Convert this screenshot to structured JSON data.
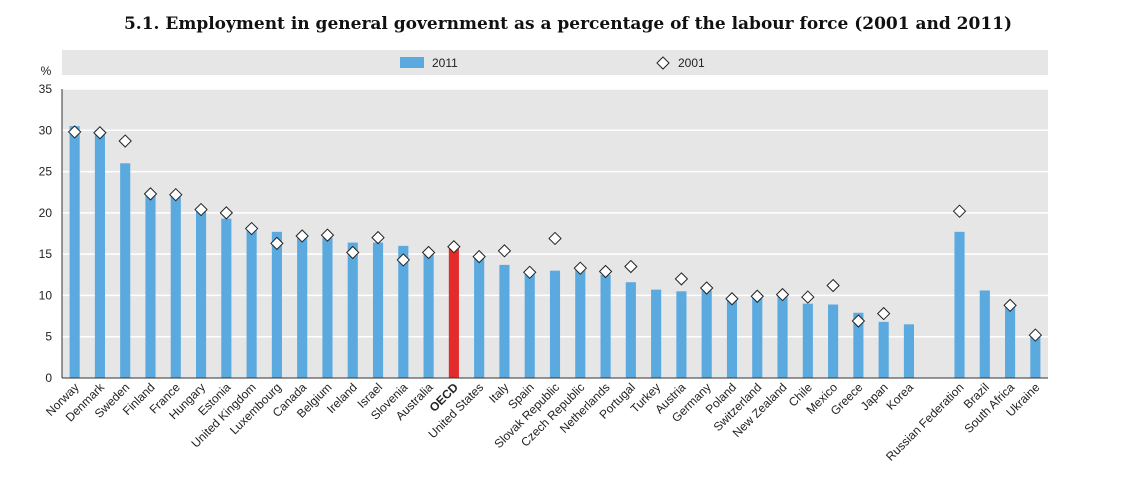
{
  "figure": {
    "title": "5.1. Employment in general government as a percentage of the labour force (2001 and 2011)"
  },
  "colors": {
    "bar": "#5aa9df",
    "highlight": "#e32b2b",
    "marker_fill": "#ffffff",
    "marker_stroke": "#222222",
    "panel": "#e6e6e6",
    "grid": "#ffffff"
  },
  "chart_data": {
    "type": "bar",
    "title": "5.1. Employment in general government as a percentage of the labour force (2001 and 2011)",
    "ylabel": "%",
    "xlabel": "",
    "ylim": [
      0,
      35
    ],
    "yticks": [
      0,
      5,
      10,
      15,
      20,
      25,
      30,
      35
    ],
    "grid": true,
    "legend_position": "top",
    "highlight_category": "OECD",
    "categories": [
      "Norway",
      "Denmark",
      "Sweden",
      "Finland",
      "France",
      "Hungary",
      "Estonia",
      "United Kingdom",
      "Luxembourg",
      "Canada",
      "Belgium",
      "Ireland",
      "Israel",
      "Slovenia",
      "Australia",
      "OECD",
      "United States",
      "Italy",
      "Spain",
      "Slovak Republic",
      "Czech Republic",
      "Netherlands",
      "Portugal",
      "Turkey",
      "Austria",
      "Germany",
      "Poland",
      "Switzerland",
      "New Zealand",
      "Chile",
      "Mexico",
      "Greece",
      "Japan",
      "Korea",
      "",
      "Russian Federation",
      "Brazil",
      "South Africa",
      "Ukraine"
    ],
    "series": [
      {
        "name": "2011",
        "kind": "bar",
        "values": [
          30.5,
          30.0,
          26.0,
          22.5,
          22.0,
          20.5,
          19.3,
          18.0,
          17.7,
          17.3,
          17.0,
          16.4,
          16.4,
          16.0,
          15.3,
          15.7,
          14.5,
          13.7,
          13.0,
          13.0,
          13.2,
          12.5,
          11.6,
          10.7,
          10.5,
          10.6,
          9.8,
          10.0,
          10.0,
          9.0,
          8.9,
          7.9,
          6.8,
          6.5,
          null,
          17.7,
          10.6,
          8.7,
          5.0
        ]
      },
      {
        "name": "2001",
        "kind": "marker",
        "values": [
          29.8,
          29.7,
          28.7,
          22.3,
          22.2,
          20.4,
          20.0,
          18.1,
          16.3,
          17.2,
          17.3,
          15.2,
          17.0,
          14.3,
          15.2,
          15.9,
          14.7,
          15.4,
          12.8,
          16.9,
          13.3,
          12.9,
          13.5,
          null,
          12.0,
          10.9,
          9.6,
          9.9,
          10.1,
          9.8,
          11.2,
          6.9,
          7.8,
          null,
          null,
          20.2,
          null,
          8.8,
          5.2
        ]
      }
    ]
  }
}
